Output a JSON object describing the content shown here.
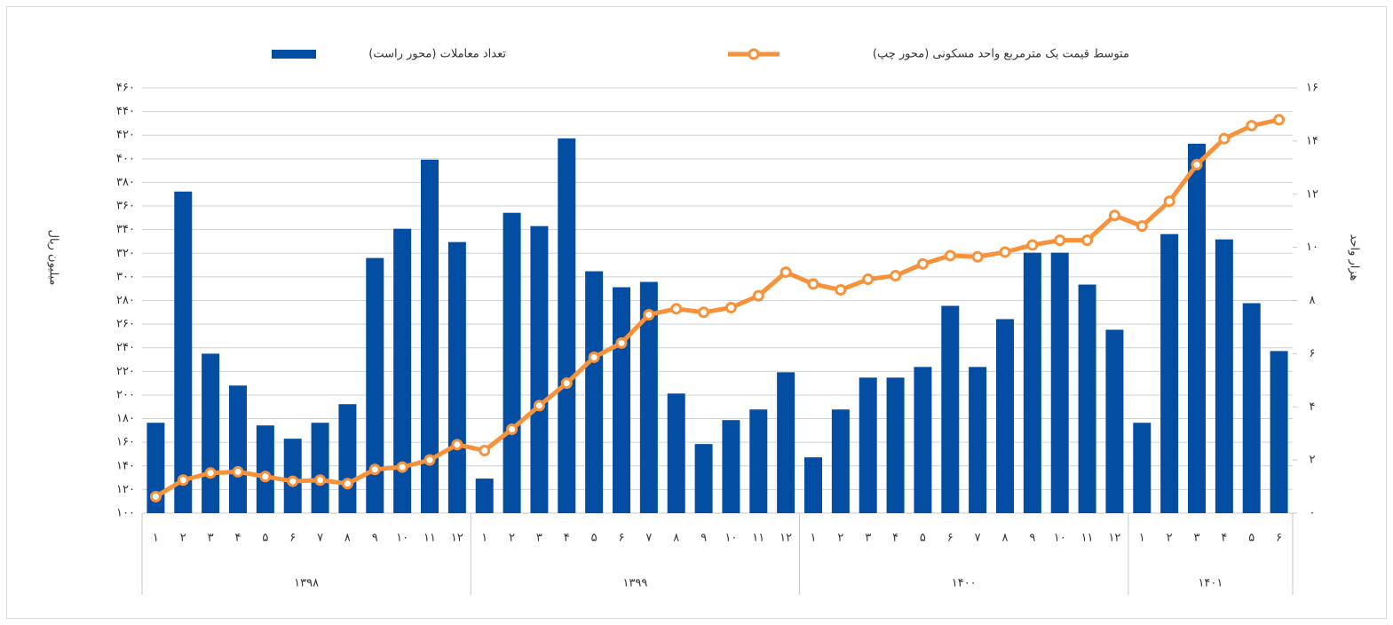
{
  "chart_data": {
    "type": "bar_line",
    "legend": "top",
    "groups": [
      {
        "name": "۱۳۹۸",
        "categories": [
          "۱",
          "۲",
          "۳",
          "۴",
          "۵",
          "۶",
          "۷",
          "۸",
          "۹",
          "۱۰",
          "۱۱",
          "۱۲"
        ]
      },
      {
        "name": "۱۳۹۹",
        "categories": [
          "۱",
          "۲",
          "۳",
          "۴",
          "۵",
          "۶",
          "۷",
          "۸",
          "۹",
          "۱۰",
          "۱۱",
          "۱۲"
        ]
      },
      {
        "name": "۱۴۰۰",
        "categories": [
          "۱",
          "۲",
          "۳",
          "۴",
          "۵",
          "۶",
          "۷",
          "۸",
          "۹",
          "۱۰",
          "۱۱",
          "۱۲"
        ]
      },
      {
        "name": "۱۴۰۱",
        "categories": [
          "۱",
          "۲",
          "۳",
          "۴",
          "۵",
          "۶"
        ]
      }
    ],
    "y_label": "میلیون ریال",
    "y2_label": "هزار واحد",
    "ylim": [
      100,
      460
    ],
    "yticks": [
      {
        "value": 100,
        "label": "۱۰۰"
      },
      {
        "value": 120,
        "label": "۱۲۰"
      },
      {
        "value": 140,
        "label": "۱۴۰"
      },
      {
        "value": 160,
        "label": "۱۶۰"
      },
      {
        "value": 180,
        "label": "۱۸۰"
      },
      {
        "value": 200,
        "label": "۲۰۰"
      },
      {
        "value": 220,
        "label": "۲۲۰"
      },
      {
        "value": 240,
        "label": "۲۴۰"
      },
      {
        "value": 260,
        "label": "۲۶۰"
      },
      {
        "value": 280,
        "label": "۲۸۰"
      },
      {
        "value": 300,
        "label": "۳۰۰"
      },
      {
        "value": 320,
        "label": "۳۲۰"
      },
      {
        "value": 340,
        "label": "۳۴۰"
      },
      {
        "value": 360,
        "label": "۳۶۰"
      },
      {
        "value": 380,
        "label": "۳۸۰"
      },
      {
        "value": 400,
        "label": "۴۰۰"
      },
      {
        "value": 420,
        "label": "۴۲۰"
      },
      {
        "value": 440,
        "label": "۴۴۰"
      },
      {
        "value": 460,
        "label": "۴۶۰"
      }
    ],
    "y2lim": [
      0,
      16
    ],
    "y2ticks": [
      {
        "value": 0,
        "label": "۰"
      },
      {
        "value": 2,
        "label": "۲"
      },
      {
        "value": 4,
        "label": "۴"
      },
      {
        "value": 6,
        "label": "۶"
      },
      {
        "value": 8,
        "label": "۸"
      },
      {
        "value": 10,
        "label": "۱۰"
      },
      {
        "value": 12,
        "label": "۱۲"
      },
      {
        "value": 14,
        "label": "۱۴"
      },
      {
        "value": 16,
        "label": "۱۶"
      }
    ],
    "grid": true,
    "series": [
      {
        "name": "تعداد معاملات (محور راست)",
        "kind": "bar",
        "axis": "y2",
        "color": "#034ea2",
        "values": [
          3.4,
          12.1,
          6.0,
          4.8,
          3.3,
          2.8,
          3.4,
          4.1,
          9.6,
          10.7,
          13.3,
          10.2,
          1.3,
          11.3,
          10.8,
          14.1,
          9.1,
          8.5,
          8.7,
          4.5,
          2.6,
          3.5,
          3.9,
          5.3,
          2.1,
          3.9,
          5.1,
          5.1,
          5.5,
          7.8,
          5.5,
          7.3,
          9.8,
          9.8,
          8.6,
          6.9,
          3.4,
          10.5,
          13.9,
          10.3,
          7.9,
          6.1
        ]
      },
      {
        "name": "متوسط قیمت یک مترمربع واحد مسکونی (محور چپ)",
        "kind": "line",
        "axis": "y",
        "color": "#f7923a",
        "values": [
          114,
          128,
          134,
          135,
          131,
          127,
          128,
          125,
          137,
          139,
          145,
          158,
          153,
          171,
          191,
          210,
          232,
          244,
          268,
          273,
          270,
          274,
          284,
          304,
          294,
          289,
          298,
          301,
          311,
          318,
          317,
          321,
          327,
          331,
          331,
          352,
          343,
          364,
          395,
          417,
          428,
          433
        ]
      }
    ]
  }
}
